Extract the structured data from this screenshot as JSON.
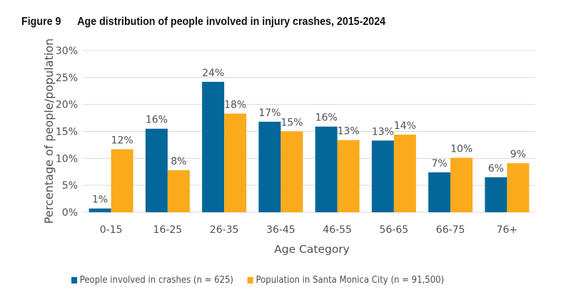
{
  "figure": {
    "number_label": "Figure 9",
    "title": "Age distribution of people involved in injury crashes, 2015-2024"
  },
  "chart_data": {
    "type": "bar",
    "title": "Age distribution of people involved in injury crashes, 2015-2024",
    "xlabel": "Age Category",
    "ylabel": "Percentage of people/population",
    "categories": [
      "0-15",
      "16-25",
      "26-35",
      "36-45",
      "46-55",
      "56-65",
      "66-75",
      "76+"
    ],
    "series": [
      {
        "name": "People involved in crashes (n = 625)",
        "color": "#03679a",
        "values": [
          0.7,
          15.5,
          24.2,
          16.8,
          15.9,
          13.3,
          7.4,
          6.5
        ],
        "labels": [
          "1%",
          "16%",
          "24%",
          "17%",
          "16%",
          "13%",
          "7%",
          "6%"
        ]
      },
      {
        "name": "Population in Santa Monica City (n = 91,500)",
        "color": "#fbaa1c",
        "values": [
          11.7,
          7.8,
          18.3,
          15.0,
          13.4,
          14.4,
          10.1,
          9.1
        ],
        "labels": [
          "12%",
          "8%",
          "18%",
          "15%",
          "13%",
          "14%",
          "10%",
          "9%"
        ]
      }
    ],
    "ylim": [
      0,
      30
    ],
    "yticks": [
      0,
      5,
      10,
      15,
      20,
      25,
      30
    ],
    "ytick_labels": [
      "0%",
      "5%",
      "10%",
      "15%",
      "20%",
      "25%",
      "30%"
    ],
    "grid": true,
    "legend_position": "bottom"
  }
}
